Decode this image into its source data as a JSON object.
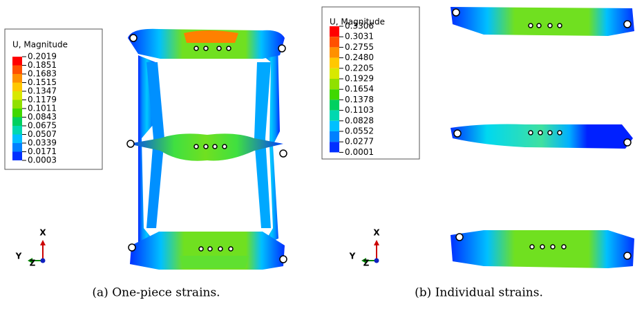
{
  "panels": [
    {
      "legend": {
        "title": "U, Magnitude",
        "levels": [
          "0.2019",
          "0.1851",
          "0.1683",
          "0.1515",
          "0.1347",
          "0.1179",
          "0.1011",
          "0.0843",
          "0.0675",
          "0.0507",
          "0.0339",
          "0.0171",
          "0.0003"
        ]
      },
      "triad": {
        "x": "X",
        "y": "Y",
        "z": "Z"
      },
      "caption": "(a) One-piece strains."
    },
    {
      "legend": {
        "title": "U, Magnitude",
        "levels": [
          "0.3306",
          "0.3031",
          "0.2755",
          "0.2480",
          "0.2205",
          "0.1929",
          "0.1654",
          "0.1378",
          "0.1103",
          "0.0828",
          "0.0552",
          "0.0277",
          "0.0001"
        ]
      },
      "triad": {
        "x": "X",
        "y": "Y",
        "z": "Z"
      },
      "caption": "(b) Individual strains."
    }
  ]
}
